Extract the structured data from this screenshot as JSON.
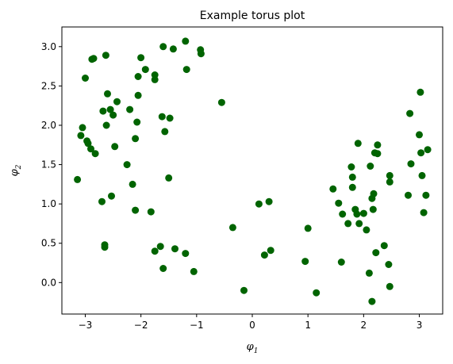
{
  "chart_data": {
    "type": "scatter",
    "title": "Example torus plot",
    "xlabel": {
      "base": "φ",
      "sub": "1"
    },
    "ylabel": {
      "base": "φ",
      "sub": "2"
    },
    "xlim": [
      -3.42,
      3.42
    ],
    "ylim": [
      -0.4,
      3.25
    ],
    "xticks": [
      -3,
      -2,
      -1,
      0,
      1,
      2,
      3
    ],
    "yticks": [
      0.0,
      0.5,
      1.0,
      1.5,
      2.0,
      2.5,
      3.0
    ],
    "ytick_labels": [
      "0.0",
      "0.5",
      "1.0",
      "1.5",
      "2.0",
      "2.5",
      "3.0"
    ],
    "grid": false,
    "marker_color": "#006400",
    "points": [
      [
        -3.14,
        1.31
      ],
      [
        -3.08,
        1.87
      ],
      [
        -3.05,
        1.97
      ],
      [
        -3.0,
        2.6
      ],
      [
        -2.97,
        1.8
      ],
      [
        -2.95,
        1.77
      ],
      [
        -2.9,
        1.7
      ],
      [
        -2.88,
        2.84
      ],
      [
        -2.85,
        2.85
      ],
      [
        -2.82,
        1.64
      ],
      [
        -2.7,
        1.03
      ],
      [
        -2.68,
        2.18
      ],
      [
        -2.65,
        0.45
      ],
      [
        -2.65,
        0.48
      ],
      [
        -2.63,
        2.89
      ],
      [
        -2.62,
        2.0
      ],
      [
        -2.6,
        2.4
      ],
      [
        -2.55,
        2.2
      ],
      [
        -2.53,
        1.1
      ],
      [
        -2.5,
        2.13
      ],
      [
        -2.47,
        1.73
      ],
      [
        -2.43,
        2.3
      ],
      [
        -2.25,
        1.5
      ],
      [
        -2.2,
        2.2
      ],
      [
        -2.15,
        1.25
      ],
      [
        -2.1,
        0.92
      ],
      [
        -2.1,
        1.83
      ],
      [
        -2.07,
        2.04
      ],
      [
        -2.05,
        2.38
      ],
      [
        -2.05,
        2.62
      ],
      [
        -2.0,
        2.86
      ],
      [
        -1.92,
        2.71
      ],
      [
        -1.82,
        0.9
      ],
      [
        -1.75,
        2.58
      ],
      [
        -1.75,
        2.64
      ],
      [
        -1.75,
        0.4
      ],
      [
        -1.65,
        0.46
      ],
      [
        -1.62,
        2.11
      ],
      [
        -1.6,
        3.0
      ],
      [
        -1.6,
        0.18
      ],
      [
        -1.57,
        1.92
      ],
      [
        -1.5,
        1.33
      ],
      [
        -1.48,
        2.09
      ],
      [
        -1.42,
        2.97
      ],
      [
        -1.39,
        0.43
      ],
      [
        -1.2,
        3.07
      ],
      [
        -1.2,
        0.37
      ],
      [
        -1.18,
        2.71
      ],
      [
        -1.05,
        0.14
      ],
      [
        -0.93,
        2.96
      ],
      [
        -0.92,
        2.91
      ],
      [
        -0.55,
        2.29
      ],
      [
        -0.35,
        0.7
      ],
      [
        -0.15,
        -0.1
      ],
      [
        0.12,
        1.0
      ],
      [
        0.22,
        0.35
      ],
      [
        0.3,
        1.03
      ],
      [
        0.33,
        0.41
      ],
      [
        0.95,
        0.27
      ],
      [
        1.0,
        0.69
      ],
      [
        1.15,
        -0.13
      ],
      [
        1.45,
        1.19
      ],
      [
        1.55,
        1.01
      ],
      [
        1.6,
        0.26
      ],
      [
        1.62,
        0.87
      ],
      [
        1.72,
        0.75
      ],
      [
        1.78,
        1.47
      ],
      [
        1.8,
        1.34
      ],
      [
        1.8,
        1.21
      ],
      [
        1.85,
        0.93
      ],
      [
        1.88,
        0.87
      ],
      [
        1.9,
        1.77
      ],
      [
        1.92,
        0.75
      ],
      [
        2.0,
        0.88
      ],
      [
        2.05,
        0.67
      ],
      [
        2.1,
        0.12
      ],
      [
        2.12,
        1.48
      ],
      [
        2.15,
        1.07
      ],
      [
        2.15,
        -0.24
      ],
      [
        2.17,
        0.93
      ],
      [
        2.18,
        1.13
      ],
      [
        2.2,
        1.65
      ],
      [
        2.22,
        0.38
      ],
      [
        2.25,
        1.64
      ],
      [
        2.25,
        1.75
      ],
      [
        2.37,
        0.47
      ],
      [
        2.45,
        0.23
      ],
      [
        2.47,
        1.36
      ],
      [
        2.47,
        1.28
      ],
      [
        2.47,
        -0.05
      ],
      [
        2.8,
        1.11
      ],
      [
        2.83,
        2.15
      ],
      [
        2.85,
        1.51
      ],
      [
        3.0,
        1.88
      ],
      [
        3.02,
        2.42
      ],
      [
        3.03,
        1.65
      ],
      [
        3.05,
        1.36
      ],
      [
        3.08,
        0.89
      ],
      [
        3.12,
        1.11
      ],
      [
        3.15,
        1.69
      ]
    ]
  }
}
